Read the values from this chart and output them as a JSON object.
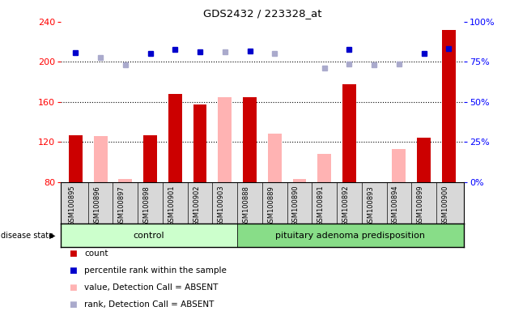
{
  "title": "GDS2432 / 223328_at",
  "samples": [
    "GSM100895",
    "GSM100896",
    "GSM100897",
    "GSM100898",
    "GSM100901",
    "GSM100902",
    "GSM100903",
    "GSM100888",
    "GSM100889",
    "GSM100890",
    "GSM100891",
    "GSM100892",
    "GSM100893",
    "GSM100894",
    "GSM100899",
    "GSM100900"
  ],
  "count_values": [
    127,
    null,
    null,
    127,
    168,
    157,
    null,
    165,
    null,
    null,
    null,
    178,
    null,
    null,
    124,
    232
  ],
  "count_absent_values": [
    null,
    126,
    83,
    null,
    null,
    null,
    165,
    null,
    128,
    83,
    108,
    null,
    null,
    113,
    null,
    null
  ],
  "percentile_values": [
    209,
    null,
    null,
    208,
    212,
    210,
    null,
    211,
    null,
    null,
    null,
    212,
    null,
    null,
    208,
    213
  ],
  "percentile_absent_values": [
    null,
    204,
    197,
    null,
    null,
    null,
    210,
    null,
    208,
    null,
    194,
    198,
    197,
    198,
    null,
    null
  ],
  "ylim": [
    80,
    240
  ],
  "y2lim": [
    0,
    100
  ],
  "yticks": [
    80,
    120,
    160,
    200,
    240
  ],
  "y2ticks": [
    0,
    25,
    50,
    75,
    100
  ],
  "grid_lines": [
    120,
    160,
    200
  ],
  "n_control": 7,
  "n_total": 16,
  "control_label": "control",
  "adenoma_label": "pituitary adenoma predisposition",
  "disease_state_label": "disease state",
  "legend_items": [
    "count",
    "percentile rank within the sample",
    "value, Detection Call = ABSENT",
    "rank, Detection Call = ABSENT"
  ],
  "bar_color": "#cc0000",
  "bar_absent_color": "#ffb3b3",
  "dot_color": "#0000cc",
  "dot_absent_color": "#aaaacc",
  "control_bg": "#ccffcc",
  "adenoma_bg": "#88dd88",
  "label_bg": "#d8d8d8",
  "bar_width": 0.55
}
